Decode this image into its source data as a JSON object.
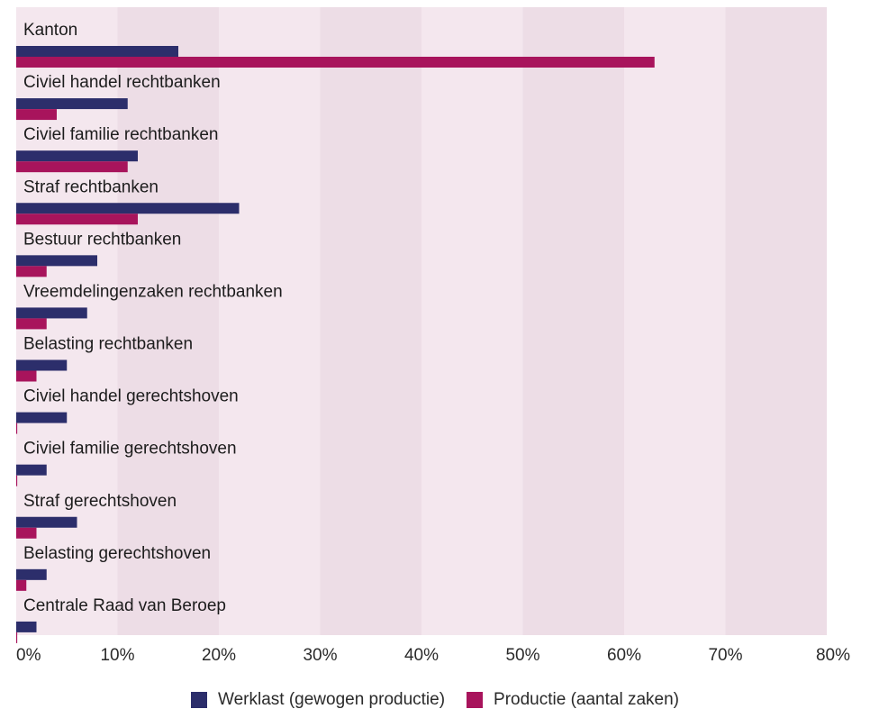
{
  "chart_data": {
    "type": "bar",
    "orientation": "horizontal",
    "categories": [
      "Kanton",
      "Civiel handel rechtbanken",
      "Civiel familie rechtbanken",
      "Straf rechtbanken",
      "Bestuur rechtbanken",
      "Vreemdelingenzaken rechtbanken",
      "Belasting rechtbanken",
      "Civiel handel gerechtshoven",
      "Civiel familie gerechtshoven",
      "Straf gerechtshoven",
      "Belasting gerechtshoven",
      "Centrale Raad van Beroep"
    ],
    "series": [
      {
        "name": "Werklast (gewogen productie)",
        "color": "#2c2e6b",
        "values": [
          16,
          11,
          12,
          22,
          8,
          7,
          5,
          5,
          3,
          6,
          3,
          2
        ]
      },
      {
        "name": "Productie (aantal zaken)",
        "color": "#a8145c",
        "values": [
          63,
          4,
          11,
          12,
          3,
          3,
          2,
          0.1,
          0.1,
          2,
          1,
          0.1
        ]
      }
    ],
    "xlim": [
      0,
      80
    ],
    "xticks": [
      "0%",
      "10%",
      "20%",
      "30%",
      "40%",
      "50%",
      "60%",
      "70%",
      "80%"
    ],
    "legend_position": "bottom-center",
    "background_bands": true
  }
}
